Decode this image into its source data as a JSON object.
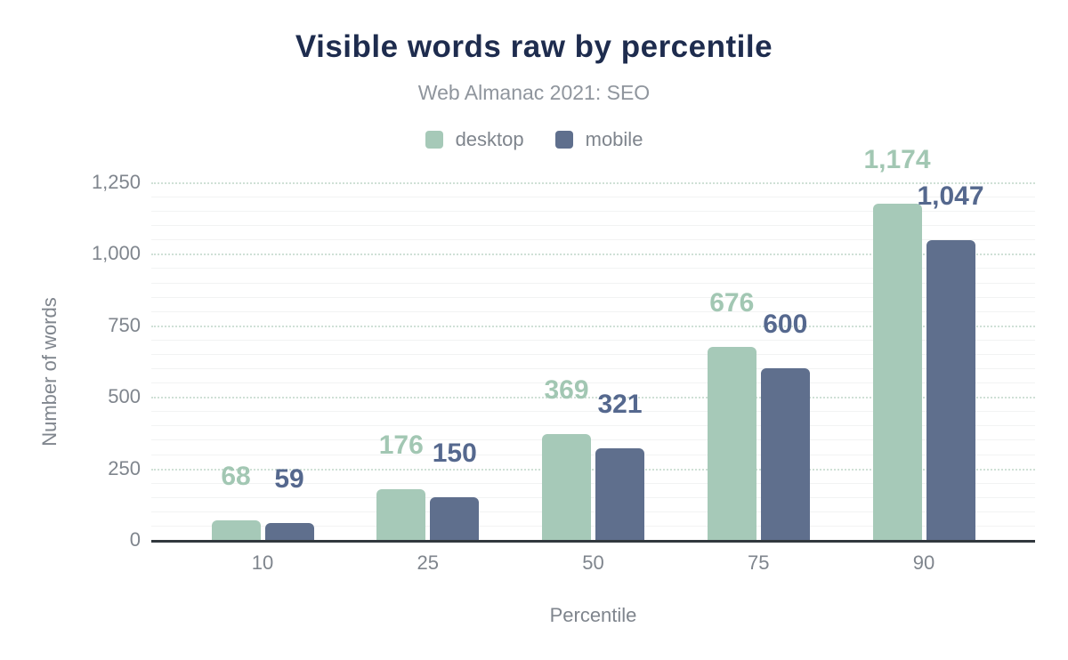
{
  "header": {
    "title": "Visible words raw by percentile",
    "subtitle": "Web Almanac 2021: SEO"
  },
  "colors": {
    "title_text": "#1e2c4e",
    "subtitle_text": "#8f959d",
    "axis_text": "#7f858d",
    "axis_line": "#32383e",
    "grid_major": "#cfe0d6",
    "grid_minor": "#f2f3f3",
    "desktop": "#a6c9b8",
    "mobile": "#5f6f8d",
    "desktop_label": "#a2c7b3",
    "mobile_label": "#55688e"
  },
  "chart_data": {
    "type": "bar",
    "title": "Visible words raw by percentile",
    "subtitle": "Web Almanac 2021: SEO",
    "categories": [
      "10",
      "25",
      "50",
      "75",
      "90"
    ],
    "series": [
      {
        "name": "desktop",
        "values": [
          68,
          176,
          369,
          676,
          1174
        ],
        "labels": [
          "68",
          "176",
          "369",
          "676",
          "1,174"
        ],
        "color": "#a6c9b8",
        "label_color": "#a2c7b3"
      },
      {
        "name": "mobile",
        "values": [
          59,
          150,
          321,
          600,
          1047
        ],
        "labels": [
          "59",
          "150",
          "321",
          "600",
          "1,047"
        ],
        "color": "#5f6f8d",
        "label_color": "#55688e"
      }
    ],
    "xlabel": "Percentile",
    "ylabel": "Number of words",
    "ylim": [
      0,
      1250
    ],
    "yticks": [
      {
        "value": 0,
        "label": "0"
      },
      {
        "value": 250,
        "label": "250"
      },
      {
        "value": 500,
        "label": "500"
      },
      {
        "value": 750,
        "label": "750"
      },
      {
        "value": 1000,
        "label": "1,000"
      },
      {
        "value": 1250,
        "label": "1,250"
      }
    ],
    "minor_grid_step": 50,
    "grid": true,
    "legend_position": "top"
  }
}
